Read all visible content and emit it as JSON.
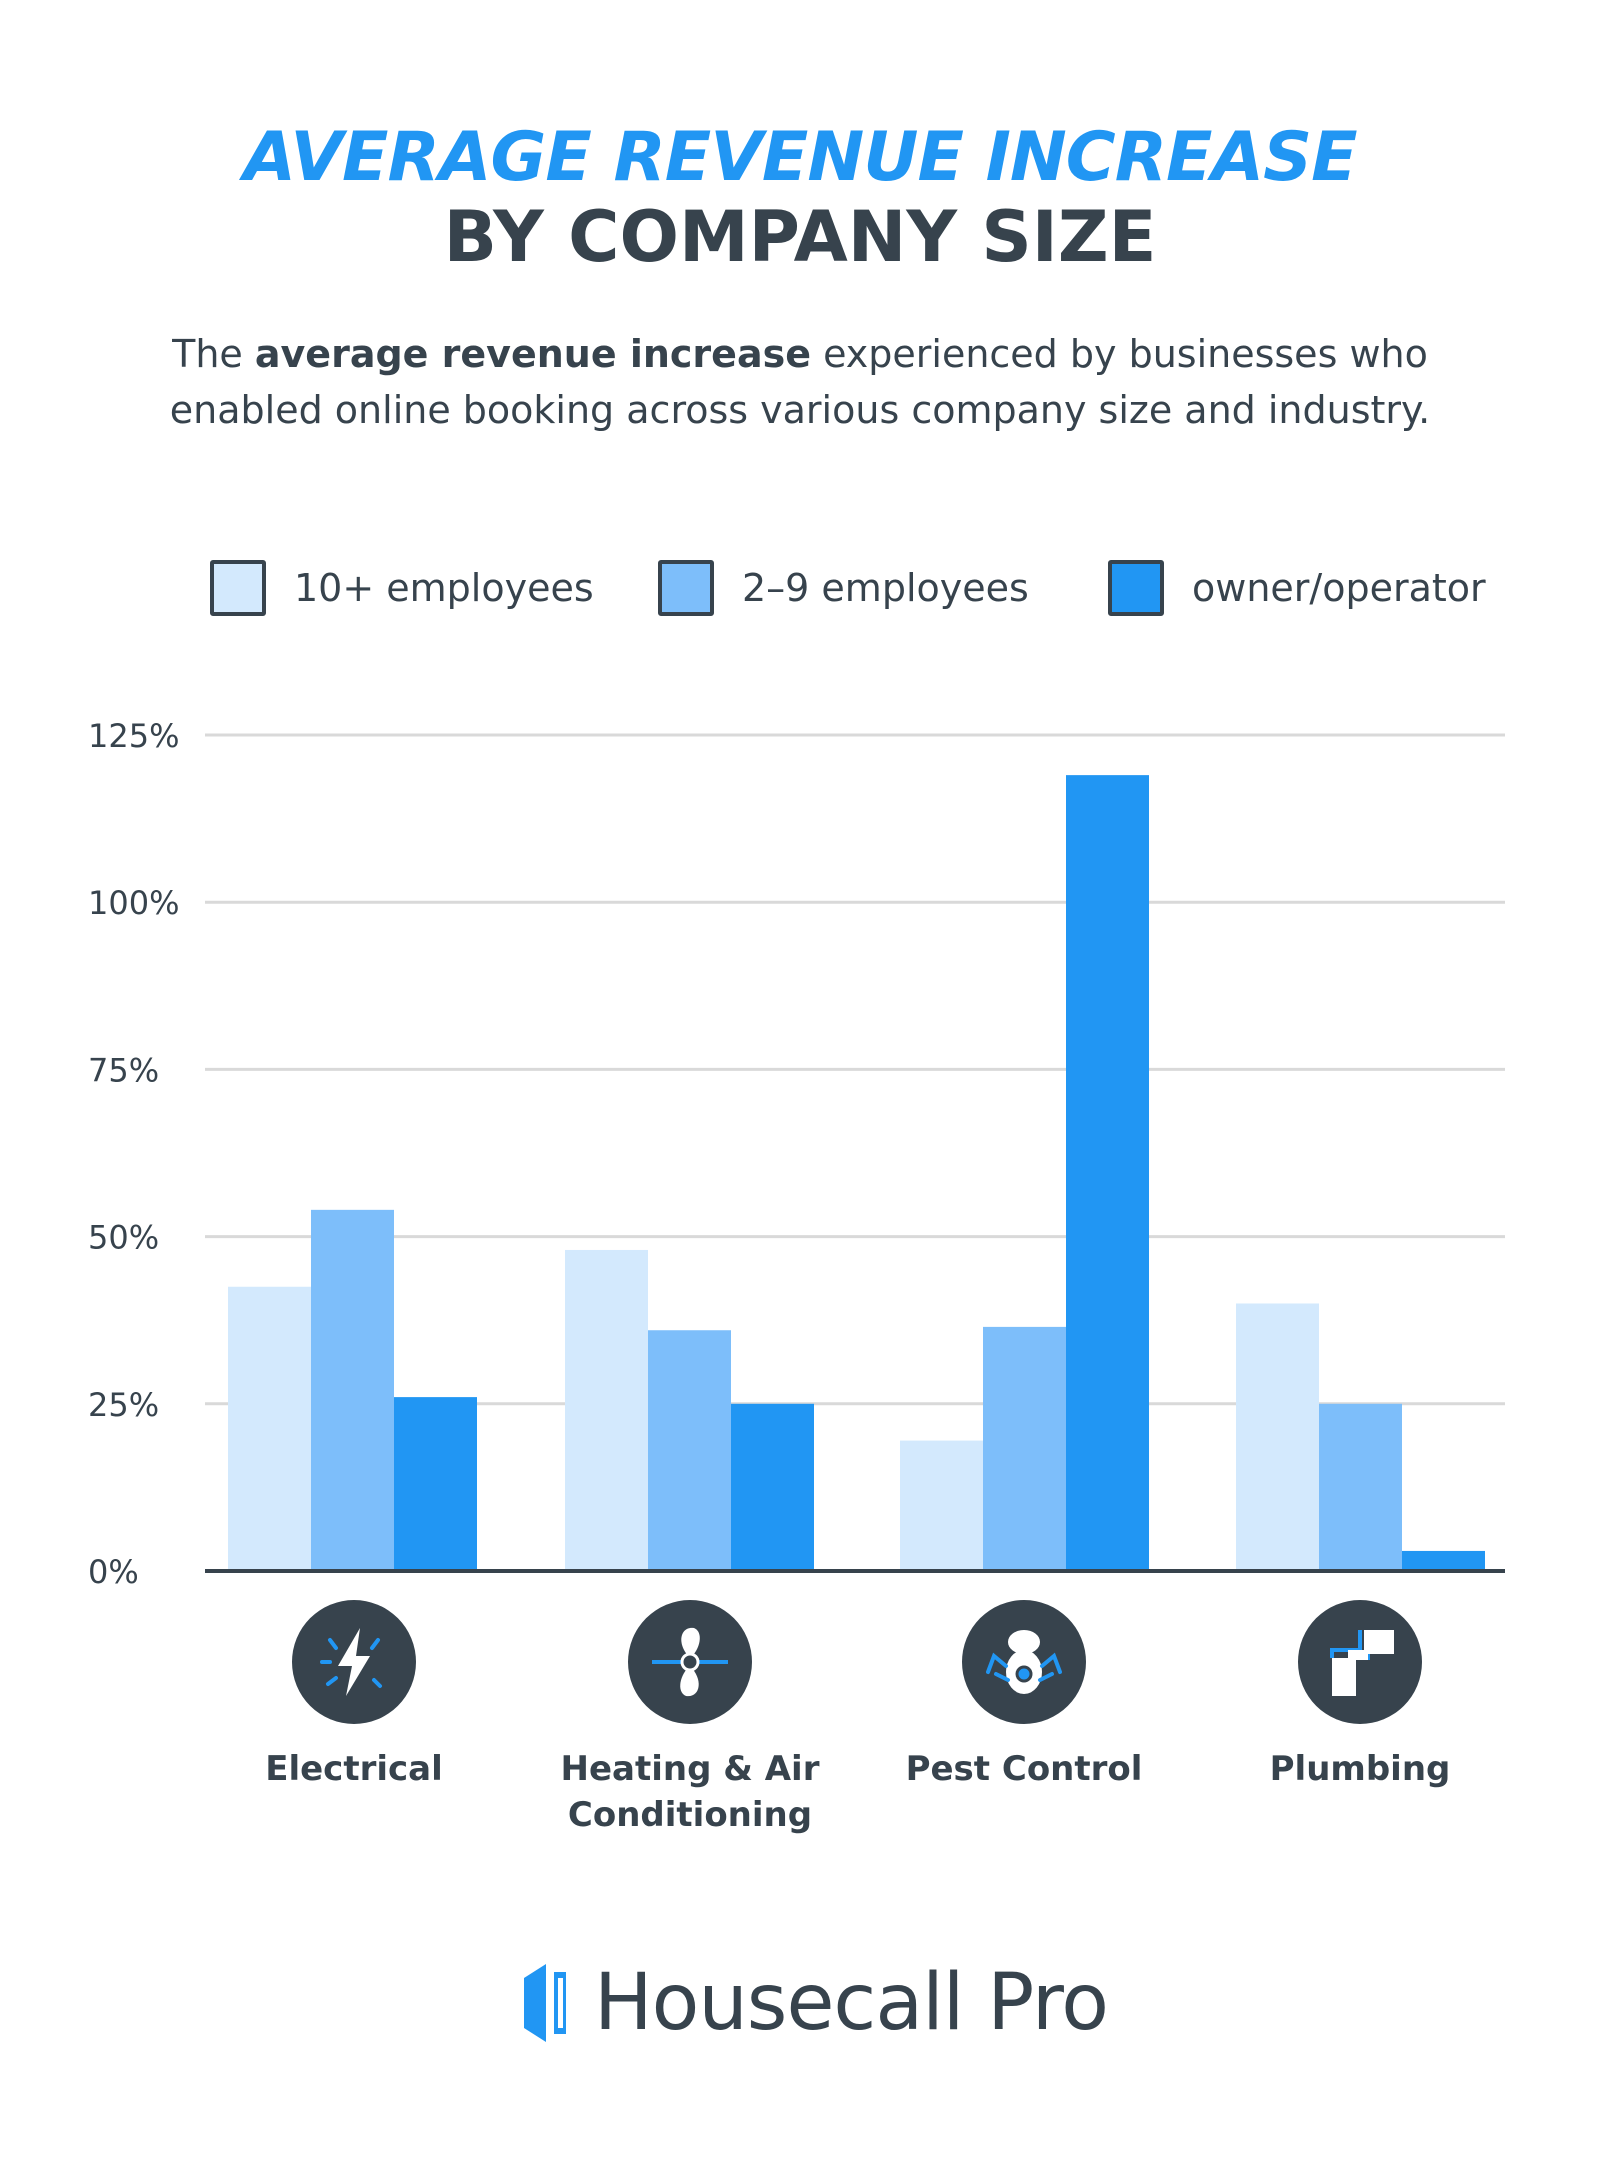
{
  "header": {
    "title_line1": "AVERAGE REVENUE INCREASE",
    "title_line2": "BY COMPANY SIZE",
    "subtitle_pre": "The ",
    "subtitle_bold": "average revenue increase",
    "subtitle_post": " experienced by businesses who enabled online booking across various company size and industry."
  },
  "colors": {
    "series_10_plus": "#d3e9fd",
    "series_2_9": "#7dbefa",
    "series_owner": "#2196f3",
    "text": "#37434d",
    "grid": "#d9d9d9"
  },
  "legend": [
    {
      "label": "10+ employees",
      "color": "#d3e9fd"
    },
    {
      "label": "2–9 employees",
      "color": "#7dbefa"
    },
    {
      "label": "owner/operator",
      "color": "#2196f3"
    }
  ],
  "chart_data": {
    "type": "bar",
    "title": "AVERAGE REVENUE INCREASE BY COMPANY SIZE",
    "categories": [
      "Electrical",
      "Heating & Air Conditioning",
      "Pest Control",
      "Plumbing"
    ],
    "series": [
      {
        "name": "10+ employees",
        "values": [
          42.5,
          48,
          19.5,
          40
        ]
      },
      {
        "name": "2–9 employees",
        "values": [
          54,
          36,
          36.5,
          25
        ]
      },
      {
        "name": "owner/operator",
        "values": [
          26,
          25,
          119,
          3
        ]
      }
    ],
    "ylim": [
      0,
      125
    ],
    "yticks": [
      0,
      25,
      50,
      75,
      100,
      125
    ],
    "ytick_labels": [
      "0%",
      "25%",
      "50%",
      "75%",
      "100%",
      "125%"
    ],
    "xlabel": "",
    "ylabel": "",
    "grid": true,
    "legend_position": "top"
  },
  "categories_display": [
    {
      "line1": "Electrical",
      "line2": "",
      "icon": "lightning-bolt-icon"
    },
    {
      "line1": "Heating & Air",
      "line2": "Conditioning",
      "icon": "fan-icon"
    },
    {
      "line1": "Pest Control",
      "line2": "",
      "icon": "bug-icon"
    },
    {
      "line1": "Plumbing",
      "line2": "",
      "icon": "pipe-icon"
    }
  ],
  "brand": {
    "name": "Housecall Pro"
  }
}
